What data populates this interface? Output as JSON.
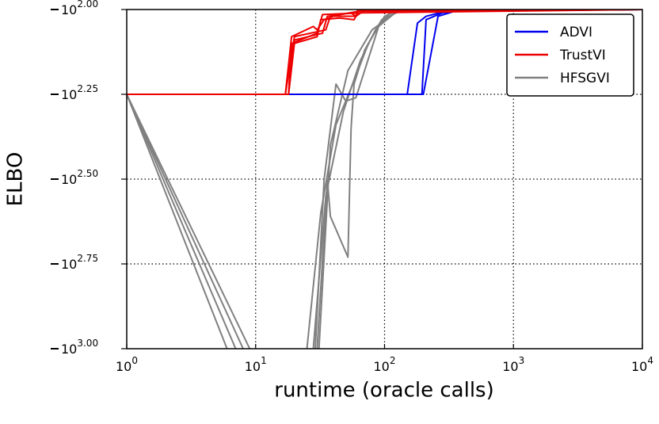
{
  "chart_data": {
    "type": "line",
    "xlabel": "runtime (oracle calls)",
    "ylabel": "ELBO",
    "x_scale": "log",
    "y_scale": "log",
    "xlim": [
      1,
      10000
    ],
    "ylim_exponent": [
      3.0,
      2.0
    ],
    "x_ticks": [
      {
        "value": 1,
        "base": "10",
        "exp": "0"
      },
      {
        "value": 10,
        "base": "10",
        "exp": "1"
      },
      {
        "value": 100,
        "base": "10",
        "exp": "2"
      },
      {
        "value": 1000,
        "base": "10",
        "exp": "3"
      },
      {
        "value": 10000,
        "base": "10",
        "exp": "4"
      }
    ],
    "y_ticks": [
      {
        "value": 2.0,
        "base": "10",
        "exp": "2.00"
      },
      {
        "value": 2.25,
        "base": "10",
        "exp": "2.25"
      },
      {
        "value": 2.5,
        "base": "10",
        "exp": "2.50"
      },
      {
        "value": 2.75,
        "base": "10",
        "exp": "2.75"
      },
      {
        "value": 3.0,
        "base": "10",
        "exp": "3.00"
      }
    ],
    "grid": true,
    "legend_position": "top-right",
    "legend": [
      {
        "label": "ADVI",
        "color": "#0000ee"
      },
      {
        "label": "TrustVI",
        "color": "#ee0000"
      },
      {
        "label": "HFSGVI",
        "color": "#808080"
      }
    ],
    "series": [
      {
        "group": "ADVI",
        "color": "#0000ee",
        "points": [
          [
            1,
            2.25
          ],
          [
            150,
            2.25
          ],
          [
            180,
            2.04
          ],
          [
            210,
            2.02
          ],
          [
            300,
            2.005
          ],
          [
            10000,
            2.0
          ]
        ]
      },
      {
        "group": "ADVI",
        "color": "#0000ee",
        "points": [
          [
            1,
            2.25
          ],
          [
            195,
            2.25
          ],
          [
            210,
            2.03
          ],
          [
            280,
            2.01
          ],
          [
            400,
            2.0
          ],
          [
            10000,
            2.0
          ]
        ]
      },
      {
        "group": "ADVI",
        "color": "#0000ee",
        "points": [
          [
            1,
            2.25
          ],
          [
            200,
            2.25
          ],
          [
            260,
            2.02
          ],
          [
            350,
            2.005
          ],
          [
            10000,
            2.0
          ]
        ]
      },
      {
        "group": "TrustVI",
        "color": "#ee0000",
        "points": [
          [
            1,
            2.25
          ],
          [
            17,
            2.25
          ],
          [
            19,
            2.08
          ],
          [
            28,
            2.05
          ],
          [
            30,
            2.06
          ],
          [
            34,
            2.03
          ],
          [
            40,
            2.02
          ],
          [
            60,
            2.02
          ],
          [
            62,
            2.0
          ],
          [
            10000,
            2.0
          ]
        ]
      },
      {
        "group": "TrustVI",
        "color": "#ee0000",
        "points": [
          [
            1,
            2.25
          ],
          [
            18,
            2.25
          ],
          [
            20,
            2.1
          ],
          [
            30,
            2.08
          ],
          [
            32,
            2.03
          ],
          [
            45,
            2.025
          ],
          [
            58,
            2.03
          ],
          [
            62,
            2.01
          ],
          [
            10000,
            2.0
          ]
        ]
      },
      {
        "group": "TrustVI",
        "color": "#ee0000",
        "points": [
          [
            1,
            2.25
          ],
          [
            18,
            2.25
          ],
          [
            20,
            2.09
          ],
          [
            33,
            2.07
          ],
          [
            36,
            2.02
          ],
          [
            55,
            2.01
          ],
          [
            60,
            2.02
          ],
          [
            68,
            2.005
          ],
          [
            10000,
            2.0
          ]
        ]
      },
      {
        "group": "TrustVI",
        "color": "#ee0000",
        "points": [
          [
            1,
            2.25
          ],
          [
            18,
            2.25
          ],
          [
            19,
            2.1
          ],
          [
            30,
            2.07
          ],
          [
            33,
            2.015
          ],
          [
            65,
            2.01
          ],
          [
            70,
            2.0
          ],
          [
            10000,
            2.0
          ]
        ]
      },
      {
        "group": "TrustVI",
        "color": "#ee0000",
        "points": [
          [
            1,
            2.25
          ],
          [
            17,
            2.25
          ],
          [
            20,
            2.08
          ],
          [
            35,
            2.06
          ],
          [
            38,
            2.02
          ],
          [
            75,
            2.0
          ],
          [
            80,
            2.005
          ],
          [
            10000,
            2.0
          ]
        ]
      },
      {
        "group": "HFSGVI",
        "color": "#808080",
        "points": [
          [
            1,
            2.25
          ],
          [
            6,
            3.0
          ]
        ]
      },
      {
        "group": "HFSGVI",
        "color": "#808080",
        "points": [
          [
            1,
            2.25
          ],
          [
            7,
            3.0
          ]
        ]
      },
      {
        "group": "HFSGVI",
        "color": "#808080",
        "points": [
          [
            1,
            2.25
          ],
          [
            8,
            3.0
          ]
        ]
      },
      {
        "group": "HFSGVI",
        "color": "#808080",
        "points": [
          [
            1,
            2.25
          ],
          [
            9,
            3.0
          ]
        ]
      },
      {
        "group": "HFSGVI",
        "color": "#808080",
        "points": [
          [
            25,
            3.0
          ],
          [
            32,
            2.6
          ],
          [
            42,
            2.34
          ],
          [
            58,
            2.21
          ],
          [
            75,
            2.1
          ],
          [
            100,
            2.02
          ],
          [
            130,
            2.0
          ],
          [
            10000,
            2.0
          ]
        ]
      },
      {
        "group": "HFSGVI",
        "color": "#808080",
        "points": [
          [
            28,
            3.0
          ],
          [
            35,
            2.55
          ],
          [
            48,
            2.3
          ],
          [
            65,
            2.15
          ],
          [
            85,
            2.06
          ],
          [
            110,
            2.01
          ],
          [
            150,
            2.0
          ],
          [
            10000,
            2.0
          ]
        ]
      },
      {
        "group": "HFSGVI",
        "color": "#808080",
        "points": [
          [
            29,
            3.0
          ],
          [
            34,
            2.5
          ],
          [
            42,
            2.22
          ],
          [
            50,
            2.27
          ],
          [
            60,
            2.26
          ],
          [
            90,
            2.05
          ],
          [
            130,
            2.0
          ],
          [
            10000,
            2.0
          ]
        ]
      },
      {
        "group": "HFSGVI",
        "color": "#808080",
        "points": [
          [
            30,
            3.0
          ],
          [
            36,
            2.5
          ],
          [
            38,
            2.61
          ],
          [
            52,
            2.73
          ],
          [
            55,
            2.35
          ],
          [
            58,
            2.22
          ],
          [
            70,
            2.12
          ],
          [
            95,
            2.03
          ],
          [
            140,
            2.0
          ],
          [
            10000,
            2.0
          ]
        ]
      },
      {
        "group": "HFSGVI",
        "color": "#808080",
        "points": [
          [
            31,
            3.0
          ],
          [
            38,
            2.4
          ],
          [
            52,
            2.18
          ],
          [
            80,
            2.06
          ],
          [
            120,
            2.01
          ],
          [
            170,
            2.0
          ],
          [
            10000,
            2.0
          ]
        ]
      }
    ]
  }
}
